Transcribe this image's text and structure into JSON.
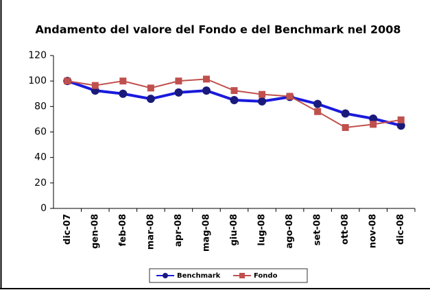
{
  "chart_data": {
    "type": "line",
    "title": "Andamento del valore del Fondo e del Benchmark nel 2008",
    "categories": [
      "dic-07",
      "gen-08",
      "feb-08",
      "mar-08",
      "apr-08",
      "mag-08",
      "giu-08",
      "lug-08",
      "ago-08",
      "set-08",
      "ott-08",
      "nov-08",
      "dic-08"
    ],
    "series": [
      {
        "name": "Benchmark",
        "color": "#1a1adc",
        "marker": "circle",
        "values": [
          100,
          92.5,
          90,
          86,
          91,
          92.5,
          85,
          84,
          87.5,
          82,
          74.5,
          70.5,
          65
        ]
      },
      {
        "name": "Fondo",
        "color": "#c0504d",
        "marker": "square",
        "values": [
          100,
          96.5,
          100,
          94.5,
          100,
          101.5,
          92.5,
          89.5,
          88,
          76,
          63.5,
          66,
          69.5
        ]
      }
    ],
    "ylim": [
      0,
      120
    ],
    "yticks": [
      0,
      20,
      40,
      60,
      80,
      100,
      120
    ],
    "grid": false,
    "legend": "bottom"
  }
}
